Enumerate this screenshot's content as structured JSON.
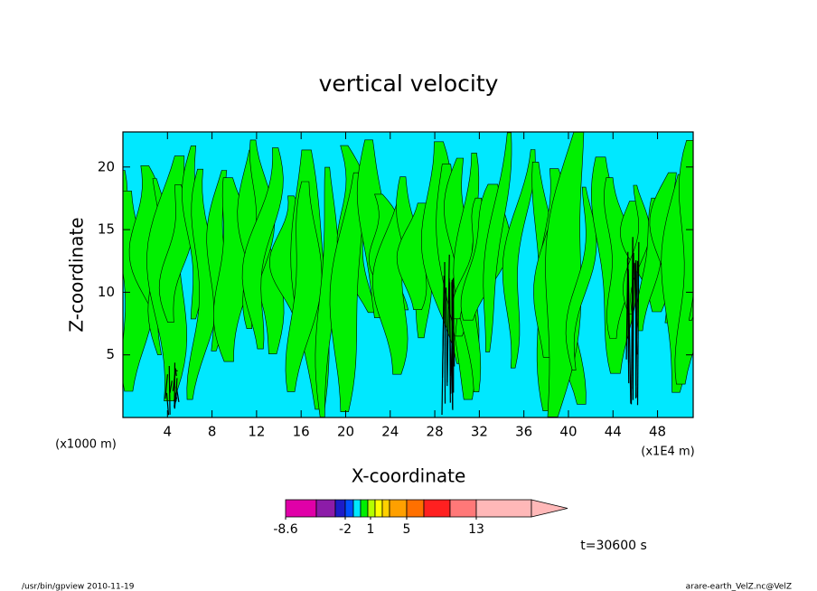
{
  "chart_data": {
    "type": "contour",
    "title": "vertical velocity",
    "xlabel": "X-coordinate",
    "ylabel": "Z-coordinate",
    "xunits": "(x1E4 m)",
    "yunits": "(x1000 m)",
    "xlim": [
      0,
      51.2
    ],
    "ylim": [
      0,
      22.8
    ],
    "xticks": [
      4,
      8,
      12,
      16,
      20,
      24,
      28,
      32,
      36,
      40,
      44,
      48
    ],
    "yticks": [
      5,
      10,
      15,
      20
    ],
    "colorbar_colors": [
      "#e000a8",
      "#8c1ca8",
      "#1c1cc8",
      "#0050ff",
      "#00e8ff",
      "#00f000",
      "#b4ff00",
      "#ffff00",
      "#ffd000",
      "#ffa000",
      "#ff7000",
      "#ff2020",
      "#ff7878",
      "#ffb8b8"
    ],
    "colorbar_ticks": [
      -8.6,
      -2,
      1,
      5,
      13
    ],
    "annotation": "t=30600 s",
    "footer_left": "/usr/bin/gpview  2010-11-19",
    "footer_right": "arare-earth_VelZ.nc@VelZ"
  }
}
